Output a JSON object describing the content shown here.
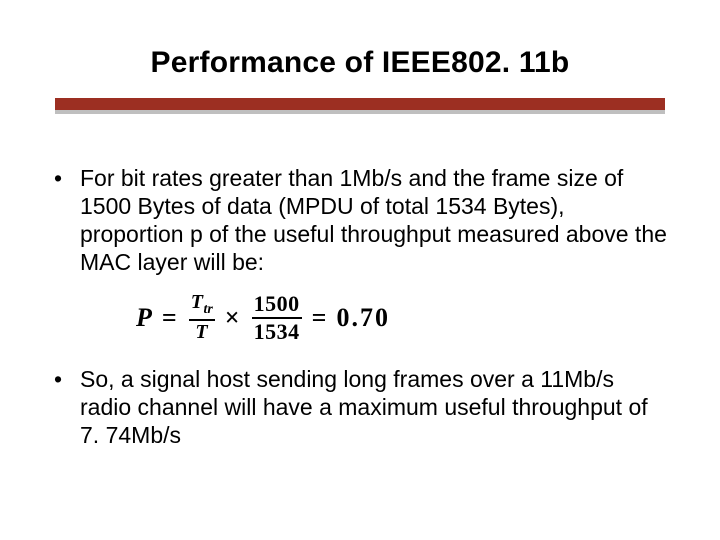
{
  "title": "Performance of IEEE802. 11b",
  "divider": {
    "bar_color": "#9c2f22",
    "shadow_color": "#bfbfbf"
  },
  "bullets": [
    "For bit rates greater than 1Mb/s and the frame size of 1500 Bytes of data (MPDU of total 1534 Bytes), proportion p of the useful throughput measured above the MAC layer will be:",
    "So, a signal host sending long frames over a 11Mb/s radio channel will have a maximum useful throughput of 7. 74Mb/s"
  ],
  "formula": {
    "lhs": "P",
    "eq": "=",
    "frac1_num": "T",
    "frac1_num_sub": "tr",
    "frac1_den": "T",
    "times": "×",
    "frac2_num": "1500",
    "frac2_den": "1534",
    "rhs": "0.70"
  },
  "text_color": "#000000",
  "background_color": "#ffffff",
  "title_fontsize": 30,
  "body_fontsize": 23
}
